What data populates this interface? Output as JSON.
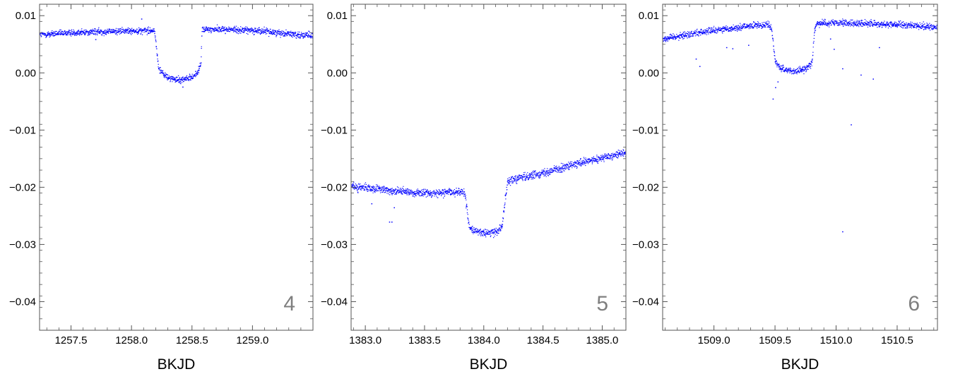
{
  "chart_data": [
    {
      "type": "scatter",
      "panel_label": "4",
      "xlabel": "BKJD",
      "ylabel": "",
      "xlim": [
        1257.24,
        1259.5
      ],
      "ylim": [
        -0.045,
        0.012
      ],
      "x_ticks": [
        "1257.5",
        "1258.0",
        "1258.5",
        "1259.0"
      ],
      "x_tick_values": [
        1257.5,
        1258.0,
        1258.5,
        1259.0
      ],
      "y_ticks": [
        "0.01",
        "0.00",
        "−0.01",
        "−0.02",
        "−0.03",
        "−0.04"
      ],
      "y_tick_values": [
        0.01,
        0.0,
        -0.01,
        -0.02,
        -0.03,
        -0.04
      ],
      "marker_color": "#0000ff",
      "series": [
        {
          "x": [
            1257.24,
            1257.5,
            1257.8,
            1258.0,
            1258.18,
            1258.19,
            1258.22,
            1258.26,
            1258.3,
            1258.38,
            1258.45,
            1258.5,
            1258.54,
            1258.57,
            1258.58,
            1258.7,
            1259.0,
            1259.2,
            1259.5
          ],
          "y": [
            0.0067,
            0.0071,
            0.0073,
            0.0074,
            0.0075,
            0.007,
            0.001,
            -0.0002,
            -0.0008,
            -0.0012,
            -0.001,
            -0.0006,
            0.0,
            0.0015,
            0.0076,
            0.0077,
            0.0075,
            0.0071,
            0.0065
          ],
          "noise": 0.0005
        }
      ],
      "outliers": [
        [
          1258.08,
          0.0095
        ],
        [
          1257.7,
          0.0059
        ],
        [
          1258.42,
          -0.0024
        ]
      ]
    },
    {
      "type": "scatter",
      "panel_label": "5",
      "xlabel": "BKJD",
      "ylabel": "",
      "xlim": [
        1382.88,
        1385.2
      ],
      "ylim": [
        -0.045,
        0.012
      ],
      "x_ticks": [
        "1383.0",
        "1383.5",
        "1384.0",
        "1384.5",
        "1385.0"
      ],
      "x_tick_values": [
        1383.0,
        1383.5,
        1384.0,
        1384.5,
        1385.0
      ],
      "y_ticks": [
        "0.01",
        "0.00",
        "−0.01",
        "−0.02",
        "−0.03",
        "−0.04"
      ],
      "y_tick_values": [
        0.01,
        0.0,
        -0.01,
        -0.02,
        -0.03,
        -0.04
      ],
      "marker_color": "#0000ff",
      "series": [
        {
          "x": [
            1382.88,
            1383.2,
            1383.5,
            1383.82,
            1383.84,
            1383.87,
            1383.9,
            1384.0,
            1384.1,
            1384.15,
            1384.18,
            1384.2,
            1384.5,
            1384.8,
            1385.2
          ],
          "y": [
            -0.0198,
            -0.0205,
            -0.021,
            -0.0207,
            -0.0215,
            -0.0265,
            -0.0275,
            -0.028,
            -0.0277,
            -0.0268,
            -0.0215,
            -0.0188,
            -0.0174,
            -0.0158,
            -0.0138
          ],
          "noise": 0.0006
        }
      ],
      "outliers": [
        [
          1383.2,
          -0.026
        ],
        [
          1383.22,
          -0.026
        ],
        [
          1383.24,
          -0.0235
        ],
        [
          1383.05,
          -0.0228
        ]
      ]
    },
    {
      "type": "scatter",
      "panel_label": "6",
      "xlabel": "BKJD",
      "ylabel": "",
      "xlim": [
        1508.58,
        1510.83
      ],
      "ylim": [
        -0.045,
        0.012
      ],
      "x_ticks": [
        "1509.0",
        "1509.5",
        "1510.0",
        "1510.5"
      ],
      "x_tick_values": [
        1509.0,
        1509.5,
        1510.0,
        1510.5
      ],
      "y_ticks": [
        "0.01",
        "0.00",
        "−0.01",
        "−0.02",
        "−0.03",
        "−0.04"
      ],
      "y_tick_values": [
        0.01,
        0.0,
        -0.01,
        -0.02,
        -0.03,
        -0.04
      ],
      "marker_color": "#0000ff",
      "series": [
        {
          "x": [
            1508.58,
            1508.9,
            1509.2,
            1509.45,
            1509.47,
            1509.5,
            1509.55,
            1509.65,
            1509.75,
            1509.8,
            1509.82,
            1509.84,
            1510.2,
            1510.5,
            1510.83
          ],
          "y": [
            0.006,
            0.0072,
            0.008,
            0.0086,
            0.0075,
            0.0018,
            0.0008,
            0.0003,
            0.0008,
            0.0018,
            0.0075,
            0.0088,
            0.0087,
            0.0085,
            0.008
          ],
          "noise": 0.0005
        }
      ],
      "outliers": [
        [
          1508.85,
          0.0025
        ],
        [
          1508.88,
          0.0012
        ],
        [
          1509.1,
          0.0045
        ],
        [
          1509.15,
          0.0043
        ],
        [
          1509.28,
          0.0049
        ],
        [
          1509.48,
          -0.0045
        ],
        [
          1509.5,
          -0.0025
        ],
        [
          1509.52,
          -0.0015
        ],
        [
          1509.95,
          0.006
        ],
        [
          1509.98,
          0.0042
        ],
        [
          1510.05,
          0.0008
        ],
        [
          1510.05,
          -0.0277
        ],
        [
          1510.12,
          -0.009
        ],
        [
          1510.2,
          -0.0003
        ],
        [
          1510.3,
          -0.001
        ],
        [
          1510.35,
          0.0045
        ]
      ]
    }
  ]
}
